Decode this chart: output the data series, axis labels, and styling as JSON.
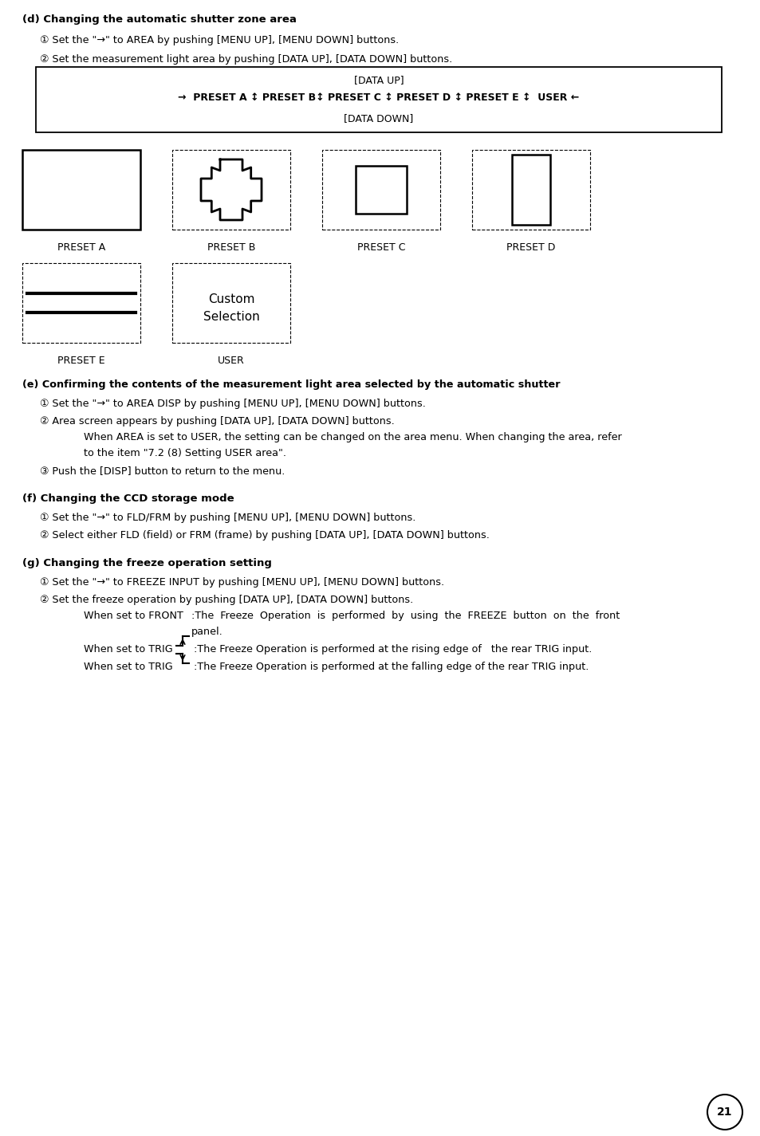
{
  "bg_color": "#ffffff",
  "page_number": "21",
  "sections": {
    "d_title": "(d) Changing the automatic shutter zone area",
    "d_item1": "① Set the \"→\" to AREA by pushing [MENU UP], [MENU DOWN] buttons.",
    "d_item2": "② Set the measurement light area by pushing [DATA UP], [DATA DOWN] buttons.",
    "box_line1": "[DATA UP]",
    "box_line2": "→  PRESET A ↕ PRESET B↕ PRESET C ↕ PRESET D ↕ PRESET E ↕  USER ←",
    "box_line3": "[DATA DOWN]",
    "preset_labels": [
      "PRESET A",
      "PRESET B",
      "PRESET C",
      "PRESET D"
    ],
    "preset_e_label": "PRESET E",
    "user_label": "USER",
    "user_text1": "Custom",
    "user_text2": "Selection",
    "e_title": "(e) Confirming the contents of the measurement light area selected by the automatic shutter",
    "e_item1": "① Set the \"→\" to AREA DISP by pushing [MENU UP], [MENU DOWN] buttons.",
    "e_item2": "② Area screen appears by pushing [DATA UP], [DATA DOWN] buttons.",
    "e_sub1": "When AREA is set to USER, the setting can be changed on the area menu. When changing the area, refer",
    "e_sub2": "to the item \"7.2 (8) Setting USER area\".",
    "e_item3": "③ Push the [DISP] button to return to the menu.",
    "f_title": "(f) Changing the CCD storage mode",
    "f_item1": "① Set the \"→\" to FLD/FRM by pushing [MENU UP], [MENU DOWN] buttons.",
    "f_item2": "② Select either FLD (field) or FRM (frame) by pushing [DATA UP], [DATA DOWN] buttons.",
    "g_title": "(g) Changing the freeze operation setting",
    "g_item1": "① Set the \"→\" to FREEZE INPUT by pushing [MENU UP], [MENU DOWN] buttons.",
    "g_item2": "② Set the freeze operation by pushing [DATA UP], [DATA DOWN] buttons.",
    "g_sub1a": "When set to FRONT",
    "g_sub1b": ":The  Freeze  Operation  is  performed  by  using  the  FREEZE  button  on  the  front",
    "g_sub1c": "panel.",
    "g_sub2a": "When set to TRIG ",
    "g_sub2b": ":The Freeze Operation is performed at the rising edge of   the rear TRIG input.",
    "g_sub3a": "When set to TRIG ",
    "g_sub3b": ":The Freeze Operation is performed at the falling edge of the rear TRIG input."
  }
}
